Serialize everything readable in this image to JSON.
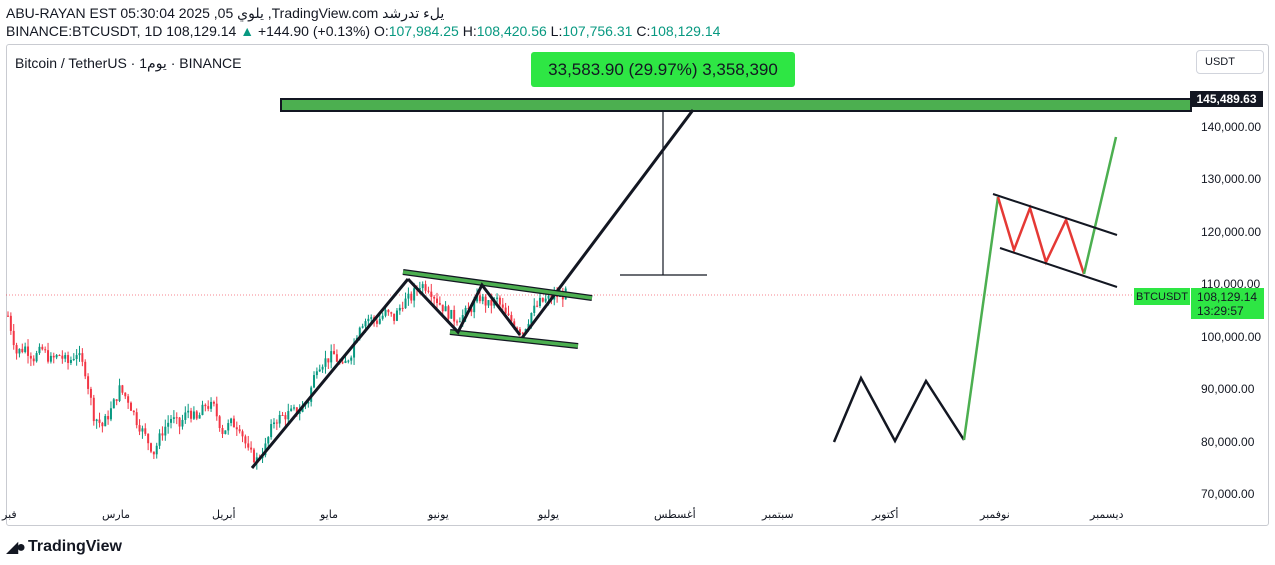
{
  "header": {
    "line1": "ABU-RAYAN EST 05:30:04 2025 ,05 يلوي ,TradingView.com يلء تدرشد",
    "symbol": "BINANCE:BTCUSDT, 1D",
    "last": "108,129.14",
    "change": "+144.90 (+0.13%)",
    "o_label": "O:",
    "o": "107,984.25",
    "h_label": "H:",
    "h": "108,420.56",
    "l_label": "L:",
    "l": "107,756.31",
    "c_label": "C:",
    "c": "108,129.14"
  },
  "chart_title": "Bitcoin / TetherUS · 1يوم · BINANCE",
  "measure_label": "33,583.90 (29.97%) 3,358,390",
  "currency_button": "USDT",
  "price_tags": {
    "target": "145,489.63",
    "symbol": "BTCUSDT",
    "last_price": "108,129.14",
    "countdown": "13:29:57"
  },
  "logo_text": "TradingView",
  "colors": {
    "up": "#089981",
    "down": "#f23645",
    "highlight": "#2ee644",
    "drawing": "#131722",
    "projection_green": "#4caf50",
    "projection_red": "#e53935"
  },
  "chart_data": {
    "type": "candlestick",
    "ylim": [
      65000,
      150000
    ],
    "y_ticks": [
      "70,000.00",
      "80,000.00",
      "90,000.00",
      "100,000.00",
      "110,000.00",
      "120,000.00",
      "130,000.00",
      "140,000.00"
    ],
    "x_ticks": [
      "فبر",
      "مارس",
      "أبريل",
      "مايو",
      "يونيو",
      "يوليو",
      "أغسطس",
      "سبتمبر",
      "أكتوبر",
      "نوفمبر",
      "ديسمبر"
    ],
    "key_levels": {
      "target": 145489.63,
      "last": 108129.14
    },
    "close_path": [
      [
        0,
        104000
      ],
      [
        3,
        97000
      ],
      [
        6,
        98000
      ],
      [
        9,
        96000
      ],
      [
        12,
        97500
      ],
      [
        15,
        95500
      ],
      [
        18,
        96500
      ],
      [
        21,
        95000
      ],
      [
        24,
        97000
      ],
      [
        27,
        93500
      ],
      [
        30,
        85000
      ],
      [
        33,
        83000
      ],
      [
        36,
        86000
      ],
      [
        39,
        90000
      ],
      [
        42,
        88000
      ],
      [
        45,
        84000
      ],
      [
        48,
        81000
      ],
      [
        51,
        78000
      ],
      [
        54,
        82000
      ],
      [
        57,
        84500
      ],
      [
        60,
        83000
      ],
      [
        63,
        86000
      ],
      [
        66,
        84000
      ],
      [
        69,
        87000
      ],
      [
        72,
        86500
      ],
      [
        75,
        82000
      ],
      [
        78,
        83500
      ],
      [
        81,
        83000
      ],
      [
        84,
        78000
      ],
      [
        87,
        76500
      ],
      [
        90,
        79000
      ],
      [
        93,
        84000
      ],
      [
        96,
        84800
      ],
      [
        99,
        85500
      ],
      [
        102,
        86000
      ],
      [
        105,
        88000
      ],
      [
        108,
        94500
      ],
      [
        111,
        95500
      ],
      [
        114,
        96500
      ],
      [
        117,
        94000
      ],
      [
        120,
        97000
      ],
      [
        123,
        102500
      ],
      [
        126,
        103500
      ],
      [
        129,
        103000
      ],
      [
        132,
        104500
      ],
      [
        135,
        103500
      ],
      [
        138,
        106500
      ],
      [
        141,
        107500
      ],
      [
        144,
        110000
      ],
      [
        147,
        109500
      ],
      [
        150,
        107000
      ],
      [
        153,
        105000
      ],
      [
        156,
        103500
      ],
      [
        159,
        104000
      ],
      [
        162,
        105500
      ],
      [
        165,
        107500
      ],
      [
        168,
        106000
      ],
      [
        171,
        107000
      ],
      [
        174,
        104000
      ],
      [
        177,
        102500
      ],
      [
        180,
        101000
      ],
      [
        183,
        104500
      ],
      [
        186,
        106500
      ],
      [
        189,
        107200
      ],
      [
        192,
        107800
      ],
      [
        195,
        108129
      ]
    ]
  }
}
